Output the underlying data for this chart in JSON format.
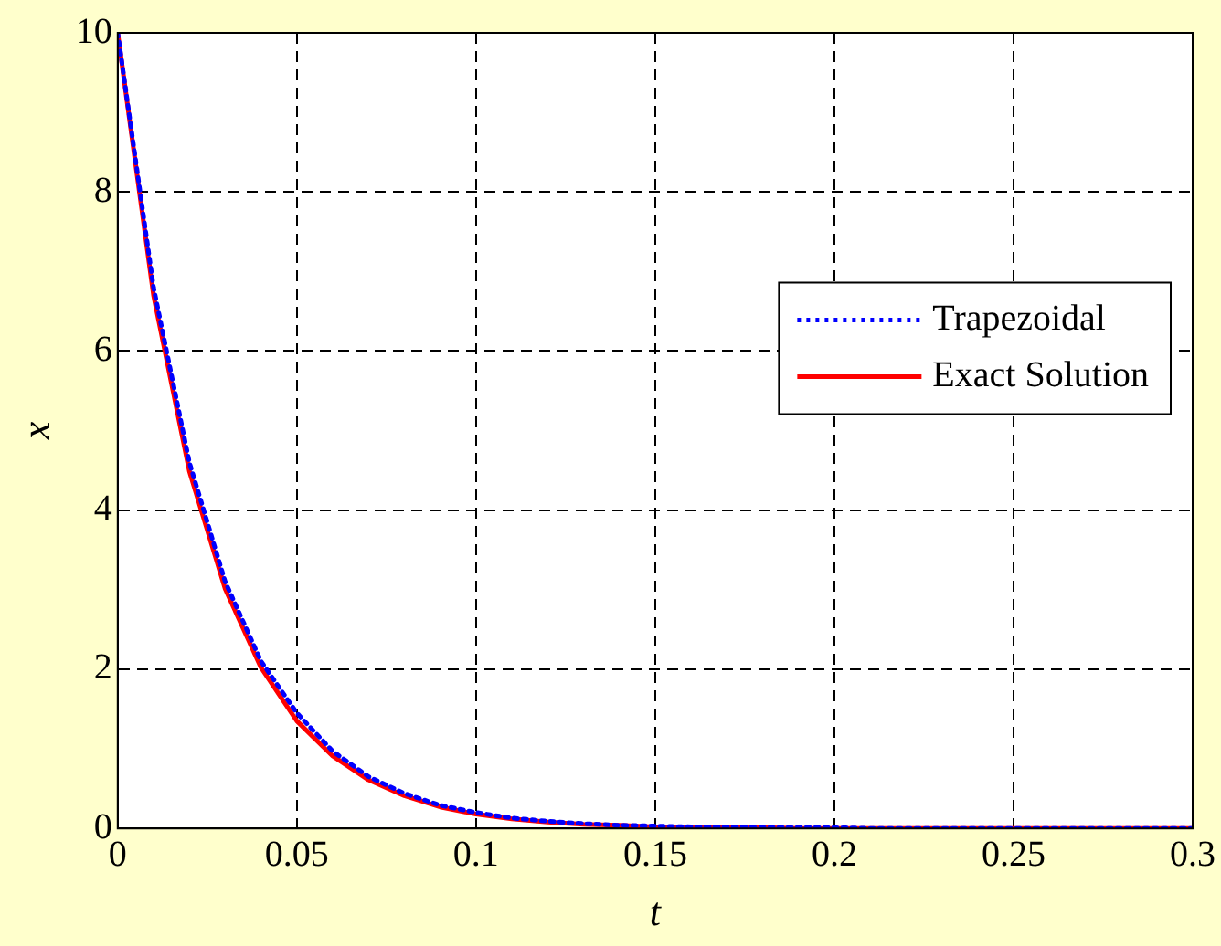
{
  "chart_data": {
    "type": "line",
    "xlabel": "t",
    "ylabel": "x",
    "x": [
      0,
      0.01,
      0.02,
      0.03,
      0.04,
      0.05,
      0.06,
      0.07,
      0.08,
      0.09,
      0.1,
      0.11,
      0.12,
      0.13,
      0.14,
      0.15,
      0.16,
      0.17,
      0.18,
      0.19,
      0.2,
      0.21,
      0.22,
      0.23,
      0.24,
      0.25,
      0.26,
      0.27,
      0.28,
      0.29,
      0.3
    ],
    "series": [
      {
        "name": "Trapezoidal",
        "color": "#0000ff",
        "line_style": "dotted",
        "values": [
          10,
          6.8,
          4.6,
          3.1,
          2.1,
          1.45,
          0.97,
          0.65,
          0.44,
          0.29,
          0.2,
          0.13,
          0.09,
          0.06,
          0.04,
          0.03,
          0.02,
          0.02,
          0.01,
          0.01,
          0.01,
          0,
          0,
          0,
          0,
          0,
          0,
          0,
          0,
          0,
          0
        ]
      },
      {
        "name": "Exact Solution",
        "color": "#ff0000",
        "line_style": "solid",
        "values": [
          10,
          6.7,
          4.49,
          3.01,
          2.02,
          1.35,
          0.91,
          0.61,
          0.41,
          0.27,
          0.18,
          0.12,
          0.08,
          0.05,
          0.04,
          0.02,
          0.02,
          0.01,
          0.01,
          0,
          0,
          0,
          0,
          0,
          0,
          0,
          0,
          0,
          0,
          0,
          0
        ]
      }
    ],
    "xlim": [
      0,
      0.3
    ],
    "xticks": [
      0,
      0.05,
      0.1,
      0.15,
      0.2,
      0.25,
      0.3
    ],
    "ylim": [
      0,
      10
    ],
    "yticks": [
      0,
      2,
      4,
      6,
      8,
      10
    ],
    "grid": true,
    "legend": "right",
    "marker": "none"
  }
}
